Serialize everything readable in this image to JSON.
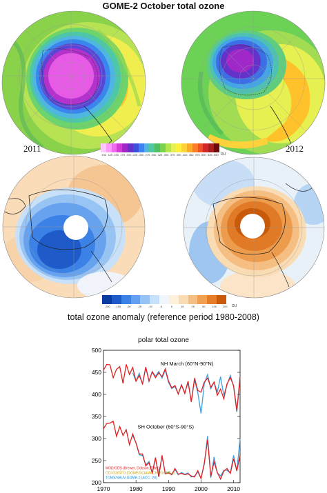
{
  "title": "GOME-2 October total ozone",
  "year_left": "2011",
  "year_right": "2012",
  "total_colorbar": {
    "colors": [
      "#ffc8ff",
      "#ff9bff",
      "#f06bf0",
      "#d23cd2",
      "#a028c8",
      "#6432c8",
      "#3c50dc",
      "#3c82f0",
      "#50b4dc",
      "#50c8a0",
      "#50be64",
      "#78d250",
      "#b4e650",
      "#e6f050",
      "#fff03c",
      "#ffd23c",
      "#ffaa28",
      "#ff7d28",
      "#f05028",
      "#d22828",
      "#aa1e1e",
      "#6e0a0a"
    ],
    "labels": [
      "100",
      "125",
      "150",
      "175",
      "200",
      "225",
      "250",
      "275",
      "300",
      "325",
      "350",
      "375",
      "400",
      "425",
      "450",
      "475",
      "500",
      "525",
      "550"
    ],
    "unit": "DU"
  },
  "anomaly_colorbar": {
    "colors": [
      "#0a3ca0",
      "#1e5ac8",
      "#3c82e6",
      "#64a0f0",
      "#96c3f5",
      "#c8e1fa",
      "#f0f6fc",
      "#fff0dc",
      "#fadcb4",
      "#f5be82",
      "#f0a050",
      "#e67d28",
      "#c85a0a"
    ],
    "labels": [
      "-200",
      "-100",
      "-50",
      "-25",
      "-15",
      "-5",
      "5",
      "15",
      "25",
      "50",
      "100",
      "200"
    ],
    "unit": "DU"
  },
  "anomaly_title": "total ozone anomaly (reference period 1980-2008)",
  "chart_data": {
    "type": "line",
    "title": "polar total ozone",
    "xlim": [
      1970,
      2012
    ],
    "ylim": [
      200,
      500
    ],
    "x_ticks": [
      1970,
      1980,
      1990,
      2000,
      2010
    ],
    "y_ticks": [
      200,
      250,
      300,
      350,
      400,
      450,
      500
    ],
    "annotations": [
      "NH March (60°N-90°N)",
      "SH October (60°S-90°S)"
    ],
    "nh_x": [
      1970,
      1971,
      1972,
      1973,
      1974,
      1975,
      1976,
      1977,
      1978,
      1979,
      1980,
      1981,
      1982,
      1983,
      1984,
      1985,
      1986,
      1987,
      1988,
      1989,
      1990,
      1991,
      1992,
      1993,
      1994,
      1995,
      1996,
      1997,
      1998,
      1999,
      2000,
      2001,
      2002,
      2003,
      2004,
      2005,
      2006,
      2007,
      2008,
      2009,
      2010,
      2011,
      2012
    ],
    "sh_x": [
      1970,
      1971,
      1972,
      1973,
      1974,
      1975,
      1976,
      1977,
      1978,
      1979,
      1980,
      1981,
      1982,
      1983,
      1984,
      1985,
      1986,
      1987,
      1988,
      1989,
      1990,
      1991,
      1992,
      1993,
      1994,
      1995,
      1996,
      1997,
      1998,
      1999,
      2000,
      2001,
      2002,
      2003,
      2004,
      2005,
      2006,
      2007,
      2008,
      2009,
      2010,
      2011,
      2012
    ],
    "series": [
      {
        "name": "MOD/ODS (Brewer, Dobson, Filter)",
        "color": "#e02020",
        "label_color": "#e02020",
        "nh": [
          455,
          468,
          467,
          438,
          457,
          463,
          425,
          468,
          445,
          461,
          430,
          443,
          424,
          462,
          430,
          451,
          438,
          449,
          440,
          458,
          430,
          415,
          420,
          401,
          421,
          402,
          430,
          383,
          437,
          409,
          405,
          428,
          437,
          416,
          428,
          398,
          412,
          390,
          424,
          438,
          420,
          363,
          440
        ],
        "sh": [
          322,
          334,
          335,
          339,
          305,
          327,
          307,
          320,
          286,
          310,
          290,
          265,
          265,
          238,
          245,
          222,
          257,
          213,
          262,
          220,
          222,
          218,
          232,
          219,
          221,
          218,
          220,
          215,
          213,
          227,
          209,
          244,
          297,
          214,
          247,
          223,
          208,
          226,
          232,
          221,
          254,
          227,
          262
        ]
      },
      {
        "name": "CCI-O3/GTO (GOME/SCIAMACHY/GOME-2)",
        "color": "#e8c020",
        "label_color": "#c8a000",
        "nh": [
          null,
          null,
          null,
          null,
          null,
          null,
          null,
          null,
          null,
          null,
          null,
          null,
          null,
          null,
          null,
          null,
          null,
          null,
          null,
          null,
          null,
          null,
          null,
          null,
          null,
          null,
          null,
          null,
          null,
          null,
          null,
          null,
          null,
          null,
          null,
          null,
          null,
          null,
          null,
          null,
          null,
          null,
          null
        ],
        "sh": [
          null,
          null,
          null,
          null,
          null,
          null,
          null,
          null,
          null,
          null,
          null,
          null,
          null,
          null,
          null,
          null,
          null,
          null,
          null,
          null,
          null,
          null,
          null,
          null,
          null,
          null,
          null,
          null,
          null,
          null,
          null,
          null,
          null,
          null,
          null,
          null,
          null,
          null,
          null,
          null,
          null,
          null,
          null
        ]
      },
      {
        "name": "TOMS/SBUV-GOME-2 (ACC. V8)",
        "color": "#40a0e0",
        "label_color": "#1a8ad0",
        "nh": [
          null,
          null,
          null,
          null,
          null,
          null,
          null,
          null,
          null,
          449,
          430,
          448,
          423,
          461,
          430,
          452,
          441,
          452,
          437,
          455,
          427,
          413,
          418,
          401,
          422,
          404,
          427,
          384,
          433,
          404,
          357,
          424,
          445,
          413,
          428,
          405,
          440,
          398,
          422,
          443,
          418,
          360,
          441
        ],
        "sh": [
          null,
          null,
          null,
          null,
          null,
          null,
          null,
          null,
          null,
          306,
          291,
          263,
          262,
          240,
          248,
          222,
          255,
          219,
          260,
          220,
          224,
          219,
          230,
          218,
          223,
          219,
          222,
          213,
          215,
          224,
          211,
          241,
          306,
          211,
          258,
          222,
          215,
          228,
          228,
          222,
          262,
          226,
          300
        ]
      }
    ],
    "green_overlay": {
      "nh": [
        null,
        null,
        null,
        null,
        null,
        null,
        null,
        null,
        null,
        null,
        null,
        null,
        null,
        null,
        null,
        null,
        null,
        null,
        null,
        null,
        null,
        null,
        null,
        null,
        null,
        null,
        null,
        null,
        null,
        null,
        null,
        null,
        null,
        null,
        null,
        null,
        null,
        null,
        null,
        null,
        null,
        null,
        null
      ]
    }
  }
}
